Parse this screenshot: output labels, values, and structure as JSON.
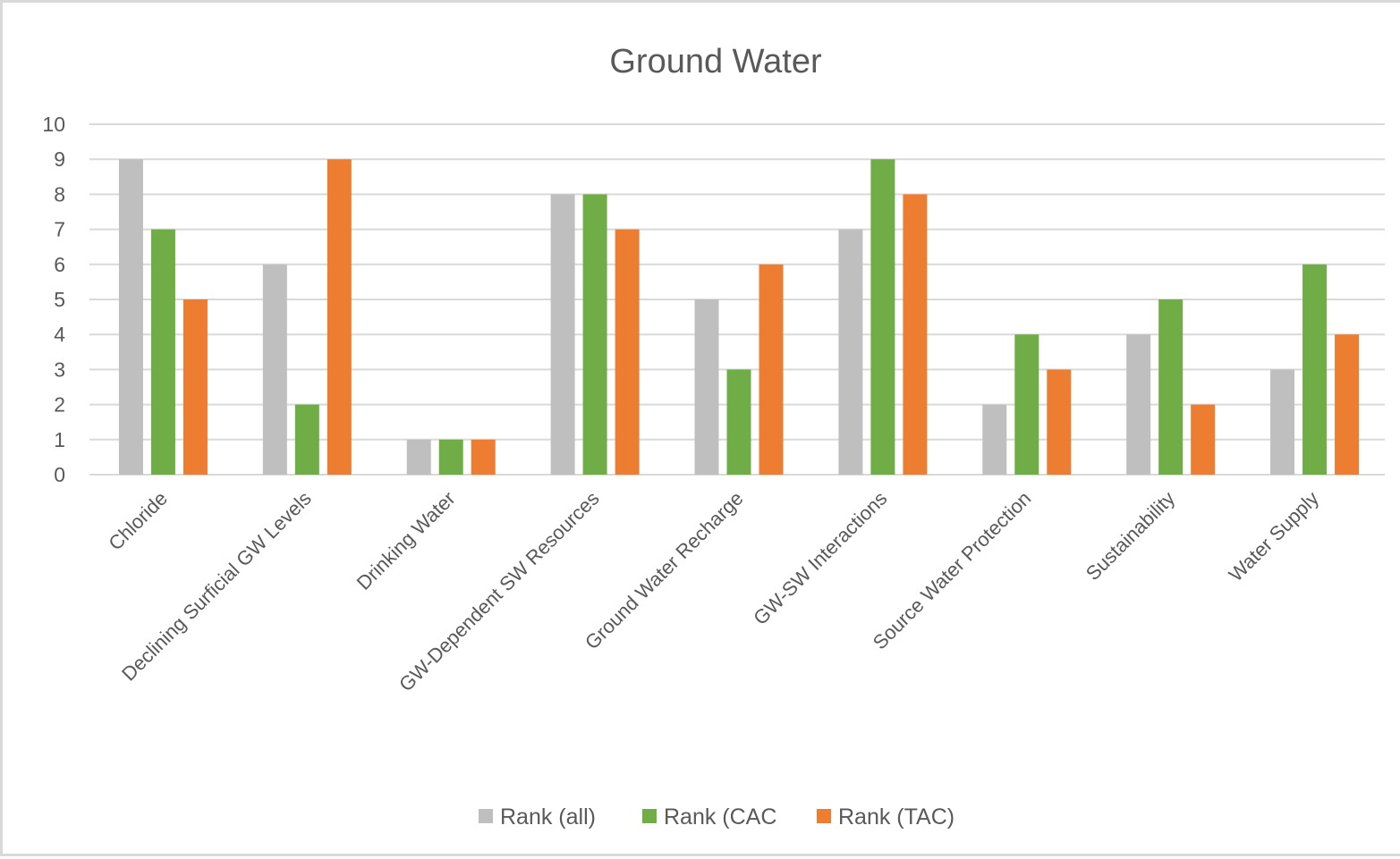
{
  "chart_data": {
    "type": "bar",
    "title": "Ground Water",
    "xlabel": "",
    "ylabel": "",
    "ylim": [
      0,
      10
    ],
    "yticks": [
      0,
      1,
      2,
      3,
      4,
      5,
      6,
      7,
      8,
      9,
      10
    ],
    "grid": true,
    "legend_position": "bottom",
    "categories": [
      "Chloride",
      "Declining Surficial GW Levels",
      "Drinking Water",
      "GW-Dependent SW Resources",
      "Ground Water Recharge",
      "GW-SW Interactions",
      "Source Water Protection",
      "Sustainability",
      "Water Supply"
    ],
    "series": [
      {
        "name": "Rank (all)",
        "color": "#bfbfbf",
        "values": [
          9,
          6,
          1,
          8,
          5,
          7,
          2,
          4,
          3
        ]
      },
      {
        "name": "Rank (CAC",
        "color": "#70ad47",
        "values": [
          7,
          2,
          1,
          8,
          3,
          9,
          4,
          5,
          6
        ]
      },
      {
        "name": "Rank (TAC)",
        "color": "#ed7d31",
        "values": [
          5,
          9,
          1,
          7,
          6,
          8,
          3,
          2,
          4
        ]
      }
    ]
  }
}
